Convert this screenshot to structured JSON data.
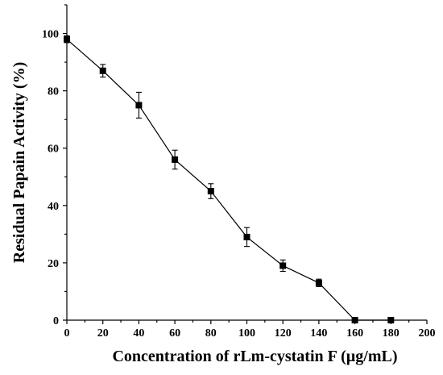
{
  "chart_data": {
    "type": "line",
    "title": "",
    "xlabel": "Concentration of rLm-cystatin F (µg/mL)",
    "ylabel": "Residual Papain Activity (%)",
    "xlim": [
      0,
      200
    ],
    "ylim": [
      0,
      110
    ],
    "x_ticks": [
      0,
      20,
      40,
      60,
      80,
      100,
      120,
      140,
      160,
      180,
      200
    ],
    "y_ticks": [
      0,
      20,
      40,
      60,
      80,
      100
    ],
    "grid": false,
    "legend": "none",
    "marker": "square",
    "color": "#000000",
    "series": [
      {
        "x": [
          0,
          20,
          40,
          60,
          80,
          100,
          120,
          140,
          160,
          180
        ],
        "y": [
          98,
          87,
          75,
          56,
          45,
          29,
          19,
          13,
          0,
          0
        ],
        "error": [
          1.2,
          2.2,
          4.5,
          3.3,
          2.6,
          3.3,
          2.0,
          1.3,
          0,
          0
        ]
      }
    ]
  }
}
